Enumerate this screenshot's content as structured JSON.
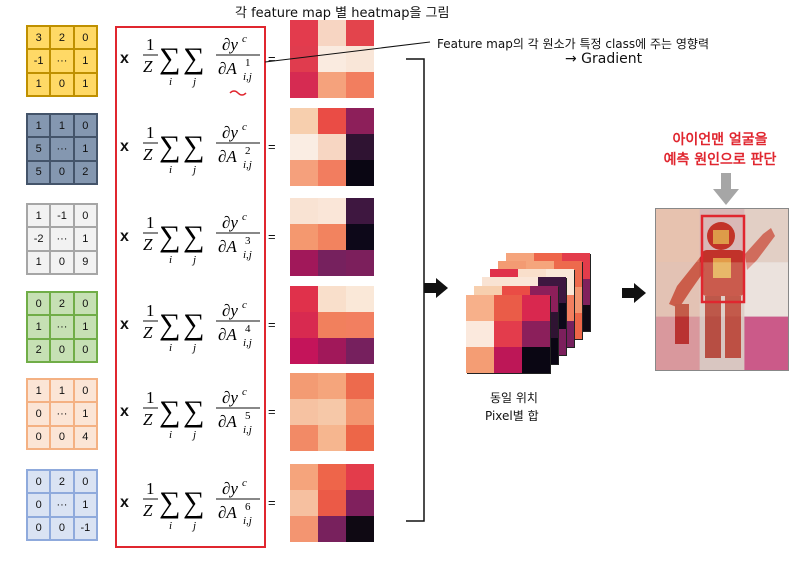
{
  "title": "각 feature map 별 heatmap을 그림",
  "annotation": {
    "line1": "Feature map의 각 원소가 특정 class에 주는 영향력",
    "line2": "→ Gradient"
  },
  "result_caption": {
    "line1": "아이언맨 얼굴을",
    "line2": "예측 원인으로 판단"
  },
  "sum_caption": {
    "line1": "동일 위치",
    "line2": "Pixel별 합"
  },
  "multiply_symbol": "x",
  "equals_symbol": "=",
  "feature_maps": [
    {
      "cells": [
        "3",
        "2",
        "0",
        "-1",
        "···",
        "1",
        "1",
        "0",
        "1"
      ],
      "fill": "#ffd966",
      "border": "#bf9000",
      "superscript": "1",
      "heatmap": [
        "#e33b4d",
        "#f7d5c2",
        "#e3444c",
        "#e03c4e",
        "#faebe0",
        "#f9e6d8",
        "#d62b52",
        "#f5a27c",
        "#f27e5f"
      ]
    },
    {
      "cells": [
        "1",
        "1",
        "0",
        "5",
        "···",
        "1",
        "5",
        "0",
        "2"
      ],
      "fill": "#8497b0",
      "border": "#44546a",
      "superscript": "2",
      "heatmap": [
        "#f7cfae",
        "#ea4c45",
        "#8d1f5a",
        "#faede3",
        "#f7d6c2",
        "#2f1332",
        "#f5a07c",
        "#f27d5f",
        "#0a0613"
      ]
    },
    {
      "cells": [
        "1",
        "-1",
        "0",
        "-2",
        "···",
        "1",
        "1",
        "0",
        "9"
      ],
      "fill": "#f2f2f2",
      "border": "#a6a6a6",
      "superscript": "3",
      "heatmap": [
        "#f9e3d3",
        "#fae6d8",
        "#3e1740",
        "#f4986f",
        "#f2835f",
        "#0d0819",
        "#a1185a",
        "#76215e",
        "#7c1f5c"
      ]
    },
    {
      "cells": [
        "0",
        "2",
        "0",
        "1",
        "···",
        "1",
        "2",
        "0",
        "0"
      ],
      "fill": "#c6e0b4",
      "border": "#70ad47",
      "superscript": "4",
      "heatmap": [
        "#e0314b",
        "#f9dfcb",
        "#fae8d8",
        "#d82a50",
        "#f1805d",
        "#f27f60",
        "#c4145a",
        "#a1185a",
        "#76205e"
      ]
    },
    {
      "cells": [
        "1",
        "1",
        "0",
        "0",
        "···",
        "1",
        "0",
        "0",
        "4"
      ],
      "fill": "#fbe5d6",
      "border": "#f4b183",
      "superscript": "5",
      "heatmap": [
        "#f39b73",
        "#f5a57c",
        "#ed6a4d",
        "#f6c2a2",
        "#f6c8a8",
        "#f39670",
        "#f28a66",
        "#f6b68f",
        "#ed6648"
      ]
    },
    {
      "cells": [
        "0",
        "2",
        "0",
        "0",
        "···",
        "1",
        "0",
        "0",
        "-1"
      ],
      "fill": "#dae3f3",
      "border": "#8faadc",
      "superscript": "6",
      "heatmap": [
        "#f5a47c",
        "#ee654a",
        "#e33c4b",
        "#f6c0a0",
        "#eb5a47",
        "#80205d",
        "#f39571",
        "#78215d",
        "#0f0913"
      ]
    }
  ],
  "stack_front": [
    "#f7b08a",
    "#ea5c48",
    "#d9284f",
    "#fbe9dd",
    "#e33c4c",
    "#8b1f5b",
    "#f49d74",
    "#bd1757",
    "#0a0613"
  ]
}
